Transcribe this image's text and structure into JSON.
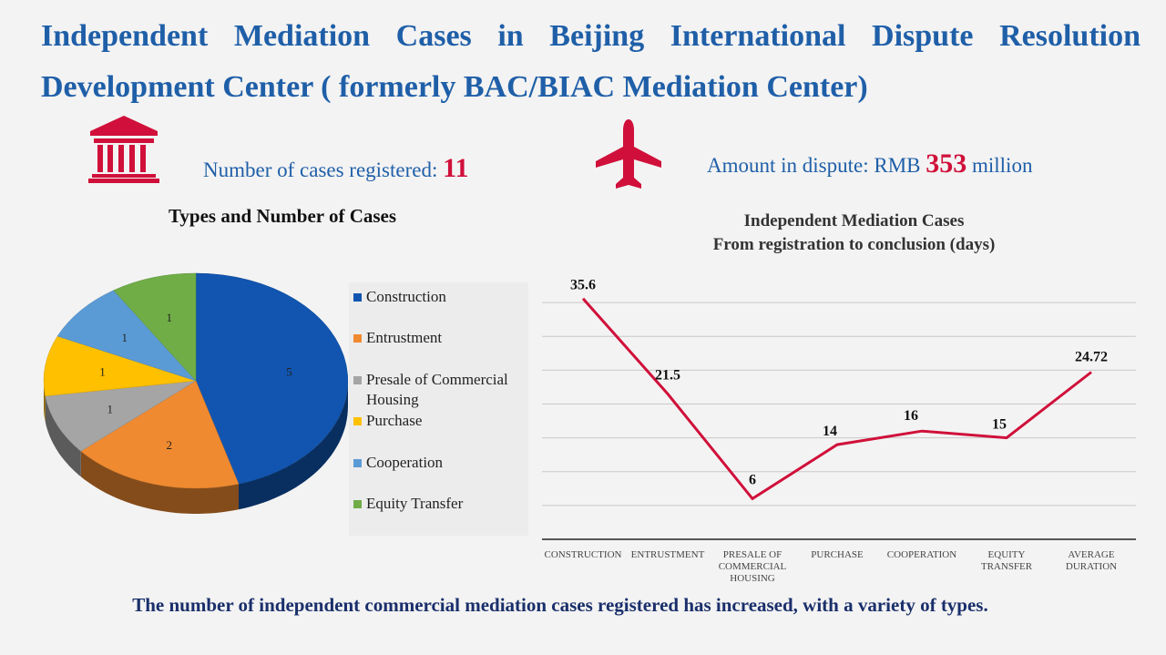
{
  "header": {
    "title_line1": "Independent Mediation Cases in Beijing International Dispute Resolution",
    "title_line2": "Development Center ( formerly BAC/BIAC Mediation Center)"
  },
  "stats": {
    "cases_label": "Number of cases registered:",
    "cases_value": "11",
    "amount_prefix": "Amount in dispute: RMB",
    "amount_value": "353",
    "amount_suffix": "million",
    "icons": [
      "bank-building-icon",
      "airplane-icon"
    ],
    "accent_color": "#d0103a"
  },
  "footer": {
    "text": "The number of independent commercial mediation cases registered has increased, with a variety of types."
  },
  "chart_data": [
    {
      "type": "pie",
      "title": "Types and Number of Cases",
      "categories": [
        "Construction",
        "Entrustment",
        "Presale of Commercial Housing",
        "Purchase",
        "Cooperation",
        "Equity Transfer"
      ],
      "values": [
        5,
        2,
        1,
        1,
        1,
        1
      ],
      "colors": [
        "#1155b0",
        "#f08a30",
        "#a5a5a5",
        "#ffc000",
        "#5b9bd5",
        "#70ad47"
      ],
      "legend_position": "right"
    },
    {
      "type": "line",
      "title_line1": "Independent Mediation Cases",
      "title_line2": "From registration to conclusion (days)",
      "categories": [
        "CONSTRUCTION",
        "ENTRUSTMENT",
        "PRESALE OF COMMERCIAL HOUSING",
        "PURCHASE",
        "COOPERATION",
        "EQUITY TRANSFER",
        "AVERAGE DURATION"
      ],
      "values": [
        35.6,
        21.5,
        6,
        14,
        16,
        15,
        24.72
      ],
      "value_labels": [
        "35.6",
        "21.5",
        "6",
        "14",
        "16",
        "15",
        "24.72"
      ],
      "ylim": [
        0,
        40
      ],
      "grid": true,
      "line_color": "#d0103a"
    }
  ]
}
